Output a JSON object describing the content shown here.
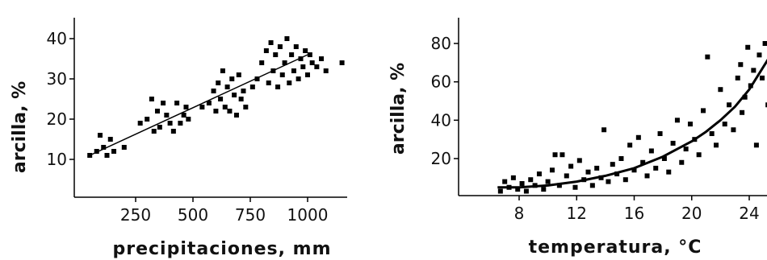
{
  "chart_data": [
    {
      "type": "scatter",
      "xlabel": "precipitaciones,  mm",
      "ylabel": "arcilla,  %",
      "xlim": [
        0,
        1200
      ],
      "ylim": [
        0,
        45
      ],
      "x_ticks": [
        250,
        500,
        750,
        1000
      ],
      "y_ticks": [
        10,
        20,
        30,
        40
      ],
      "grid": false,
      "fit": {
        "type": "linear",
        "x": [
          50,
          1000
        ],
        "y": [
          11,
          36
        ]
      },
      "points": [
        {
          "x": 50,
          "y": 11
        },
        {
          "x": 80,
          "y": 12
        },
        {
          "x": 95,
          "y": 16
        },
        {
          "x": 110,
          "y": 13
        },
        {
          "x": 125,
          "y": 11
        },
        {
          "x": 140,
          "y": 15
        },
        {
          "x": 155,
          "y": 12
        },
        {
          "x": 200,
          "y": 13
        },
        {
          "x": 270,
          "y": 19
        },
        {
          "x": 300,
          "y": 20
        },
        {
          "x": 320,
          "y": 25
        },
        {
          "x": 330,
          "y": 17
        },
        {
          "x": 345,
          "y": 22
        },
        {
          "x": 355,
          "y": 18
        },
        {
          "x": 370,
          "y": 24
        },
        {
          "x": 385,
          "y": 21
        },
        {
          "x": 400,
          "y": 19
        },
        {
          "x": 415,
          "y": 17
        },
        {
          "x": 430,
          "y": 24
        },
        {
          "x": 445,
          "y": 19
        },
        {
          "x": 460,
          "y": 21
        },
        {
          "x": 470,
          "y": 23
        },
        {
          "x": 480,
          "y": 20
        },
        {
          "x": 540,
          "y": 23
        },
        {
          "x": 570,
          "y": 24
        },
        {
          "x": 590,
          "y": 27
        },
        {
          "x": 600,
          "y": 22
        },
        {
          "x": 610,
          "y": 29
        },
        {
          "x": 620,
          "y": 25
        },
        {
          "x": 630,
          "y": 32
        },
        {
          "x": 640,
          "y": 23
        },
        {
          "x": 650,
          "y": 28
        },
        {
          "x": 660,
          "y": 22
        },
        {
          "x": 670,
          "y": 30
        },
        {
          "x": 680,
          "y": 26
        },
        {
          "x": 690,
          "y": 21
        },
        {
          "x": 700,
          "y": 31
        },
        {
          "x": 710,
          "y": 25
        },
        {
          "x": 720,
          "y": 27
        },
        {
          "x": 730,
          "y": 23
        },
        {
          "x": 760,
          "y": 28
        },
        {
          "x": 780,
          "y": 30
        },
        {
          "x": 800,
          "y": 34
        },
        {
          "x": 820,
          "y": 37
        },
        {
          "x": 830,
          "y": 29
        },
        {
          "x": 840,
          "y": 39
        },
        {
          "x": 850,
          "y": 32
        },
        {
          "x": 860,
          "y": 36
        },
        {
          "x": 870,
          "y": 28
        },
        {
          "x": 880,
          "y": 38
        },
        {
          "x": 890,
          "y": 31
        },
        {
          "x": 900,
          "y": 34
        },
        {
          "x": 910,
          "y": 40
        },
        {
          "x": 920,
          "y": 29
        },
        {
          "x": 930,
          "y": 36
        },
        {
          "x": 940,
          "y": 32
        },
        {
          "x": 950,
          "y": 38
        },
        {
          "x": 960,
          "y": 30
        },
        {
          "x": 970,
          "y": 35
        },
        {
          "x": 980,
          "y": 33
        },
        {
          "x": 990,
          "y": 37
        },
        {
          "x": 1000,
          "y": 31
        },
        {
          "x": 1010,
          "y": 36
        },
        {
          "x": 1020,
          "y": 34
        },
        {
          "x": 1040,
          "y": 33
        },
        {
          "x": 1060,
          "y": 35
        },
        {
          "x": 1080,
          "y": 32
        },
        {
          "x": 1150,
          "y": 34
        }
      ]
    },
    {
      "type": "scatter",
      "xlabel": "temperatura, °C",
      "ylabel": "arcilla,  %",
      "xlim": [
        4,
        26
      ],
      "ylim": [
        0,
        90
      ],
      "x_ticks": [
        8,
        12,
        16,
        20,
        24
      ],
      "y_ticks": [
        20,
        40,
        60,
        80
      ],
      "grid": false,
      "fit": {
        "type": "exponential",
        "x": [
          6.5,
          8,
          10,
          12,
          14,
          16,
          18,
          20,
          21,
          22,
          23,
          24,
          25,
          26
        ],
        "y": [
          5,
          5,
          6,
          8,
          11,
          15,
          21,
          29,
          34,
          40,
          47,
          56,
          68,
          80
        ]
      },
      "points": [
        {
          "x": 6.7,
          "y": 3
        },
        {
          "x": 7,
          "y": 8
        },
        {
          "x": 7.3,
          "y": 5
        },
        {
          "x": 7.6,
          "y": 10
        },
        {
          "x": 7.9,
          "y": 4
        },
        {
          "x": 8.2,
          "y": 7
        },
        {
          "x": 8.5,
          "y": 3
        },
        {
          "x": 8.8,
          "y": 9
        },
        {
          "x": 9.1,
          "y": 6
        },
        {
          "x": 9.4,
          "y": 12
        },
        {
          "x": 9.7,
          "y": 4
        },
        {
          "x": 10,
          "y": 8
        },
        {
          "x": 10.3,
          "y": 14
        },
        {
          "x": 10.5,
          "y": 22
        },
        {
          "x": 10.8,
          "y": 6
        },
        {
          "x": 11,
          "y": 22
        },
        {
          "x": 11.3,
          "y": 11
        },
        {
          "x": 11.6,
          "y": 16
        },
        {
          "x": 11.9,
          "y": 5
        },
        {
          "x": 12.2,
          "y": 19
        },
        {
          "x": 12.5,
          "y": 9
        },
        {
          "x": 12.8,
          "y": 13
        },
        {
          "x": 13.1,
          "y": 6
        },
        {
          "x": 13.4,
          "y": 15
        },
        {
          "x": 13.7,
          "y": 10
        },
        {
          "x": 13.9,
          "y": 35
        },
        {
          "x": 14.2,
          "y": 8
        },
        {
          "x": 14.5,
          "y": 17
        },
        {
          "x": 14.8,
          "y": 12
        },
        {
          "x": 15.1,
          "y": 20
        },
        {
          "x": 15.4,
          "y": 9
        },
        {
          "x": 15.7,
          "y": 27
        },
        {
          "x": 16,
          "y": 14
        },
        {
          "x": 16.3,
          "y": 31
        },
        {
          "x": 16.6,
          "y": 18
        },
        {
          "x": 16.9,
          "y": 11
        },
        {
          "x": 17.2,
          "y": 24
        },
        {
          "x": 17.5,
          "y": 15
        },
        {
          "x": 17.8,
          "y": 33
        },
        {
          "x": 18.1,
          "y": 20
        },
        {
          "x": 18.4,
          "y": 13
        },
        {
          "x": 18.7,
          "y": 28
        },
        {
          "x": 19,
          "y": 40
        },
        {
          "x": 19.3,
          "y": 18
        },
        {
          "x": 19.6,
          "y": 25
        },
        {
          "x": 19.9,
          "y": 38
        },
        {
          "x": 20.2,
          "y": 30
        },
        {
          "x": 20.5,
          "y": 22
        },
        {
          "x": 20.8,
          "y": 45
        },
        {
          "x": 21.1,
          "y": 73
        },
        {
          "x": 21.4,
          "y": 33
        },
        {
          "x": 21.7,
          "y": 27
        },
        {
          "x": 22,
          "y": 56
        },
        {
          "x": 22.3,
          "y": 38
        },
        {
          "x": 22.6,
          "y": 48
        },
        {
          "x": 22.9,
          "y": 35
        },
        {
          "x": 23.2,
          "y": 62
        },
        {
          "x": 23.4,
          "y": 69
        },
        {
          "x": 23.5,
          "y": 44
        },
        {
          "x": 23.7,
          "y": 52
        },
        {
          "x": 23.9,
          "y": 78
        },
        {
          "x": 24.1,
          "y": 58
        },
        {
          "x": 24.3,
          "y": 66
        },
        {
          "x": 24.5,
          "y": 27
        },
        {
          "x": 24.7,
          "y": 74
        },
        {
          "x": 24.9,
          "y": 62
        },
        {
          "x": 25.1,
          "y": 80
        },
        {
          "x": 25.3,
          "y": 48
        },
        {
          "x": 25.5,
          "y": 56
        },
        {
          "x": 25.7,
          "y": 70
        }
      ]
    }
  ]
}
